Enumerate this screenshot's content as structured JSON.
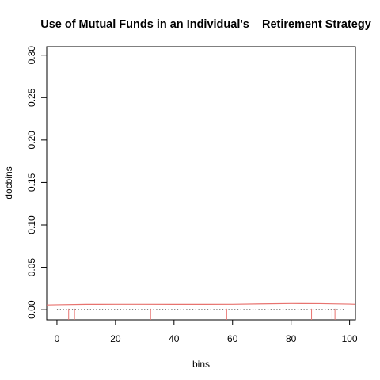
{
  "chart_data": {
    "type": "line",
    "title": "Use of Mutual Funds in an Individual's    Retirement Strategy",
    "xlabel": "bins",
    "ylabel": "docbins",
    "xlim": [
      -3.5,
      102
    ],
    "ylim": [
      -0.012,
      0.31
    ],
    "x_ticks": [
      {
        "value": 0,
        "label": "0"
      },
      {
        "value": 20,
        "label": "20"
      },
      {
        "value": 40,
        "label": "40"
      },
      {
        "value": 60,
        "label": "60"
      },
      {
        "value": 80,
        "label": "80"
      },
      {
        "value": 100,
        "label": "100"
      }
    ],
    "y_ticks": [
      {
        "value": 0.0,
        "label": "0.00"
      },
      {
        "value": 0.05,
        "label": "0.05"
      },
      {
        "value": 0.1,
        "label": "0.10"
      },
      {
        "value": 0.15,
        "label": "0.15"
      },
      {
        "value": 0.2,
        "label": "0.20"
      },
      {
        "value": 0.25,
        "label": "0.25"
      },
      {
        "value": 0.3,
        "label": "0.30"
      }
    ],
    "grid": false,
    "series": [
      {
        "style": "dotted",
        "color": "#000000",
        "x": [
          0,
          98
        ],
        "y": [
          0.0,
          0.0
        ]
      },
      {
        "style": "solid",
        "color": "#e8736f",
        "x": [
          -4,
          0,
          10,
          20,
          30,
          40,
          50,
          60,
          70,
          80,
          90,
          100,
          102
        ],
        "y": [
          0.0055,
          0.0058,
          0.0063,
          0.0064,
          0.0064,
          0.0063,
          0.0063,
          0.0064,
          0.0069,
          0.0073,
          0.0072,
          0.0066,
          0.0064
        ]
      }
    ],
    "rug": {
      "color": "#e8736f",
      "x": [
        4,
        6,
        32,
        58,
        87,
        94,
        95
      ],
      "y_top": 0.0012
    }
  }
}
